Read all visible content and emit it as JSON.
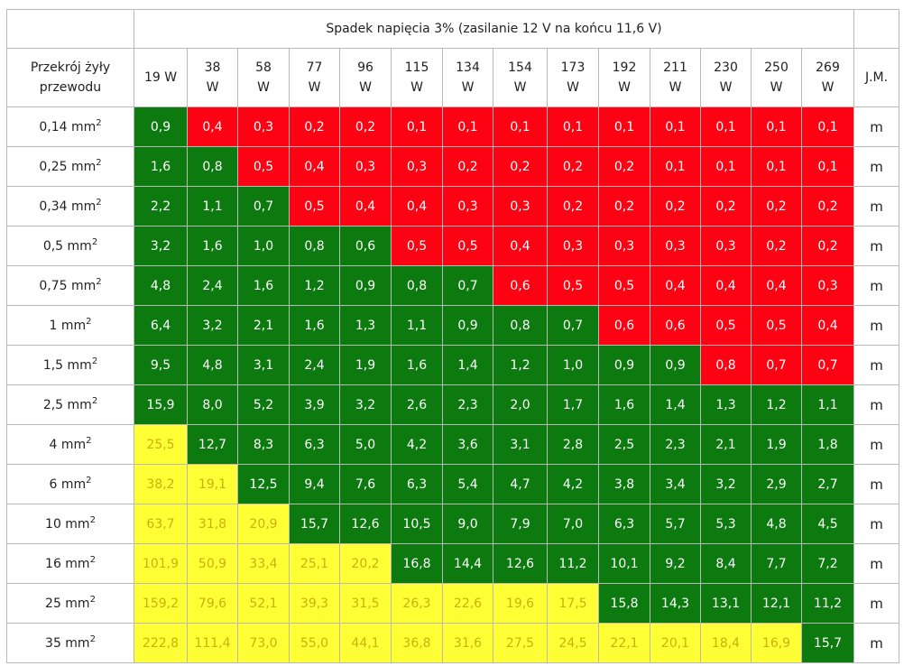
{
  "table": {
    "title": "Spadek napięcia 3% (zasilanie 12 V na końcu 11,6 V)",
    "first_header": [
      "Przekrój żyły",
      "przewodu"
    ],
    "unit_header": "J.M.",
    "power_columns": [
      {
        "value": "19",
        "unit": "W"
      },
      {
        "value": "38",
        "unit": "W"
      },
      {
        "value": "58",
        "unit": "W"
      },
      {
        "value": "77",
        "unit": "W"
      },
      {
        "value": "96",
        "unit": "W"
      },
      {
        "value": "115",
        "unit": "W"
      },
      {
        "value": "134",
        "unit": "W"
      },
      {
        "value": "154",
        "unit": "W"
      },
      {
        "value": "173",
        "unit": "W"
      },
      {
        "value": "192",
        "unit": "W"
      },
      {
        "value": "211",
        "unit": "W"
      },
      {
        "value": "230",
        "unit": "W"
      },
      {
        "value": "250",
        "unit": "W"
      },
      {
        "value": "269",
        "unit": "W"
      }
    ],
    "colors": {
      "green": "#0d7a10",
      "red": "#fc0213",
      "yellow": "#ffff35",
      "yellow_text": "#c9b10c"
    },
    "rows": [
      {
        "section": "0,14 mm",
        "unit": "m",
        "values": [
          "0,9",
          "0,4",
          "0,3",
          "0,2",
          "0,2",
          "0,1",
          "0,1",
          "0,1",
          "0,1",
          "0,1",
          "0,1",
          "0,1",
          "0,1",
          "0,1"
        ],
        "status": [
          "g",
          "r",
          "r",
          "r",
          "r",
          "r",
          "r",
          "r",
          "r",
          "r",
          "r",
          "r",
          "r",
          "r"
        ]
      },
      {
        "section": "0,25 mm",
        "unit": "m",
        "values": [
          "1,6",
          "0,8",
          "0,5",
          "0,4",
          "0,3",
          "0,3",
          "0,2",
          "0,2",
          "0,2",
          "0,2",
          "0,1",
          "0,1",
          "0,1",
          "0,1"
        ],
        "status": [
          "g",
          "g",
          "r",
          "r",
          "r",
          "r",
          "r",
          "r",
          "r",
          "r",
          "r",
          "r",
          "r",
          "r"
        ]
      },
      {
        "section": "0,34 mm",
        "unit": "m",
        "values": [
          "2,2",
          "1,1",
          "0,7",
          "0,5",
          "0,4",
          "0,4",
          "0,3",
          "0,3",
          "0,2",
          "0,2",
          "0,2",
          "0,2",
          "0,2",
          "0,2"
        ],
        "status": [
          "g",
          "g",
          "g",
          "r",
          "r",
          "r",
          "r",
          "r",
          "r",
          "r",
          "r",
          "r",
          "r",
          "r"
        ]
      },
      {
        "section": "0,5 mm",
        "unit": "m",
        "values": [
          "3,2",
          "1,6",
          "1,0",
          "0,8",
          "0,6",
          "0,5",
          "0,5",
          "0,4",
          "0,3",
          "0,3",
          "0,3",
          "0,3",
          "0,2",
          "0,2"
        ],
        "status": [
          "g",
          "g",
          "g",
          "g",
          "g",
          "r",
          "r",
          "r",
          "r",
          "r",
          "r",
          "r",
          "r",
          "r"
        ]
      },
      {
        "section": "0,75 mm",
        "unit": "m",
        "values": [
          "4,8",
          "2,4",
          "1,6",
          "1,2",
          "0,9",
          "0,8",
          "0,7",
          "0,6",
          "0,5",
          "0,5",
          "0,4",
          "0,4",
          "0,4",
          "0,3"
        ],
        "status": [
          "g",
          "g",
          "g",
          "g",
          "g",
          "g",
          "g",
          "r",
          "r",
          "r",
          "r",
          "r",
          "r",
          "r"
        ]
      },
      {
        "section": "1 mm",
        "unit": "m",
        "values": [
          "6,4",
          "3,2",
          "2,1",
          "1,6",
          "1,3",
          "1,1",
          "0,9",
          "0,8",
          "0,7",
          "0,6",
          "0,6",
          "0,5",
          "0,5",
          "0,4"
        ],
        "status": [
          "g",
          "g",
          "g",
          "g",
          "g",
          "g",
          "g",
          "g",
          "g",
          "r",
          "r",
          "r",
          "r",
          "r"
        ]
      },
      {
        "section": "1,5 mm",
        "unit": "m",
        "values": [
          "9,5",
          "4,8",
          "3,1",
          "2,4",
          "1,9",
          "1,6",
          "1,4",
          "1,2",
          "1,0",
          "0,9",
          "0,9",
          "0,8",
          "0,7",
          "0,7"
        ],
        "status": [
          "g",
          "g",
          "g",
          "g",
          "g",
          "g",
          "g",
          "g",
          "g",
          "g",
          "g",
          "r",
          "r",
          "r"
        ]
      },
      {
        "section": "2,5 mm",
        "unit": "m",
        "values": [
          "15,9",
          "8,0",
          "5,2",
          "3,9",
          "3,2",
          "2,6",
          "2,3",
          "2,0",
          "1,7",
          "1,6",
          "1,4",
          "1,3",
          "1,2",
          "1,1"
        ],
        "status": [
          "g",
          "g",
          "g",
          "g",
          "g",
          "g",
          "g",
          "g",
          "g",
          "g",
          "g",
          "g",
          "g",
          "g"
        ]
      },
      {
        "section": "4 mm",
        "unit": "m",
        "values": [
          "25,5",
          "12,7",
          "8,3",
          "6,3",
          "5,0",
          "4,2",
          "3,6",
          "3,1",
          "2,8",
          "2,5",
          "2,3",
          "2,1",
          "1,9",
          "1,8"
        ],
        "status": [
          "y",
          "g",
          "g",
          "g",
          "g",
          "g",
          "g",
          "g",
          "g",
          "g",
          "g",
          "g",
          "g",
          "g"
        ]
      },
      {
        "section": "6 mm",
        "unit": "m",
        "values": [
          "38,2",
          "19,1",
          "12,5",
          "9,4",
          "7,6",
          "6,3",
          "5,4",
          "4,7",
          "4,2",
          "3,8",
          "3,4",
          "3,2",
          "2,9",
          "2,7"
        ],
        "status": [
          "y",
          "y",
          "g",
          "g",
          "g",
          "g",
          "g",
          "g",
          "g",
          "g",
          "g",
          "g",
          "g",
          "g"
        ]
      },
      {
        "section": "10 mm",
        "unit": "m",
        "values": [
          "63,7",
          "31,8",
          "20,9",
          "15,7",
          "12,6",
          "10,5",
          "9,0",
          "7,9",
          "7,0",
          "6,3",
          "5,7",
          "5,3",
          "4,8",
          "4,5"
        ],
        "status": [
          "y",
          "y",
          "y",
          "g",
          "g",
          "g",
          "g",
          "g",
          "g",
          "g",
          "g",
          "g",
          "g",
          "g"
        ]
      },
      {
        "section": "16 mm",
        "unit": "m",
        "values": [
          "101,9",
          "50,9",
          "33,4",
          "25,1",
          "20,2",
          "16,8",
          "14,4",
          "12,6",
          "11,2",
          "10,1",
          "9,2",
          "8,4",
          "7,7",
          "7,2"
        ],
        "status": [
          "y",
          "y",
          "y",
          "y",
          "y",
          "g",
          "g",
          "g",
          "g",
          "g",
          "g",
          "g",
          "g",
          "g"
        ]
      },
      {
        "section": "25 mm",
        "unit": "m",
        "values": [
          "159,2",
          "79,6",
          "52,1",
          "39,3",
          "31,5",
          "26,3",
          "22,6",
          "19,6",
          "17,5",
          "15,8",
          "14,3",
          "13,1",
          "12,1",
          "11,2"
        ],
        "status": [
          "y",
          "y",
          "y",
          "y",
          "y",
          "y",
          "y",
          "y",
          "y",
          "g",
          "g",
          "g",
          "g",
          "g"
        ]
      },
      {
        "section": "35 mm",
        "unit": "m",
        "values": [
          "222,8",
          "111,4",
          "73,0",
          "55,0",
          "44,1",
          "36,8",
          "31,6",
          "27,5",
          "24,5",
          "22,1",
          "20,1",
          "18,4",
          "16,9",
          "15,7"
        ],
        "status": [
          "y",
          "y",
          "y",
          "y",
          "y",
          "y",
          "y",
          "y",
          "y",
          "y",
          "y",
          "y",
          "y",
          "g"
        ]
      }
    ]
  }
}
